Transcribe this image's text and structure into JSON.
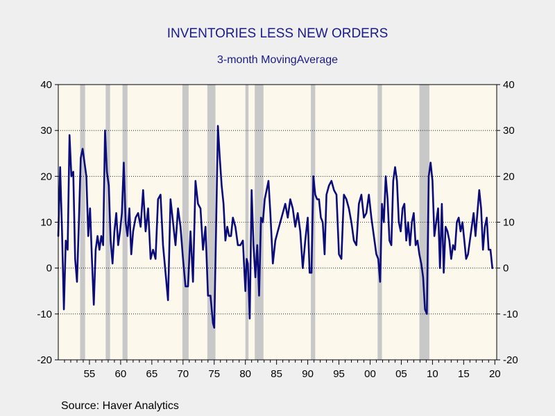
{
  "chart_data": {
    "type": "line",
    "title": "INVENTORIES LESS NEW ORDERS",
    "subtitle": "3-month MovingAverage",
    "source": "Source:  Haver Analytics",
    "ylim": [
      -20,
      40
    ],
    "y_ticks": [
      -20,
      -10,
      0,
      10,
      20,
      30,
      40
    ],
    "y_tick_labels": [
      "-20",
      "-10",
      "0",
      "10",
      "20",
      "30",
      "40"
    ],
    "xlim": [
      1950.0,
      2020.3
    ],
    "x_ticks": [
      1955,
      1960,
      1965,
      1970,
      1975,
      1980,
      1985,
      1990,
      1995,
      2000,
      2005,
      2010,
      2015,
      2020
    ],
    "x_tick_labels": [
      "55",
      "60",
      "65",
      "70",
      "75",
      "80",
      "85",
      "90",
      "95",
      "00",
      "05",
      "10",
      "15",
      "20"
    ],
    "grid": "horizontal dotted",
    "colors": {
      "line": "#0b0b7a",
      "plot_background": "#fcf8ec",
      "recession": "#c8c8c8",
      "text": "#1a1a8c"
    },
    "recessions": [
      [
        1953.5,
        1954.3
      ],
      [
        1957.6,
        1958.3
      ],
      [
        1960.3,
        1961.1
      ],
      [
        1969.9,
        1970.9
      ],
      [
        1973.9,
        1975.2
      ],
      [
        1980.0,
        1980.5
      ],
      [
        1981.5,
        1982.9
      ],
      [
        1990.5,
        1991.2
      ],
      [
        2001.2,
        2001.9
      ],
      [
        2007.9,
        2009.5
      ]
    ],
    "series": [
      {
        "x": [
          1950.0,
          1950.3,
          1950.6,
          1950.9,
          1951.2,
          1951.5,
          1951.8,
          1952.1,
          1952.4,
          1952.7,
          1953.0,
          1953.3,
          1953.6,
          1953.9,
          1954.2,
          1954.5,
          1954.8,
          1955.1,
          1955.4,
          1955.7,
          1956.0,
          1956.3,
          1956.6,
          1956.9,
          1957.2,
          1957.5,
          1957.8,
          1958.1,
          1958.4,
          1958.7,
          1959.0,
          1959.3,
          1959.6,
          1959.9,
          1960.2,
          1960.5,
          1960.8,
          1961.1,
          1961.4,
          1961.7,
          1962.0,
          1962.4,
          1962.8,
          1963.2,
          1963.6,
          1964.0,
          1964.4,
          1964.8,
          1965.2,
          1965.6,
          1966.0,
          1966.4,
          1966.8,
          1967.2,
          1967.6,
          1968.0,
          1968.4,
          1968.8,
          1969.2,
          1969.6,
          1970.0,
          1970.4,
          1970.8,
          1971.2,
          1971.6,
          1972.0,
          1972.4,
          1972.8,
          1973.2,
          1973.6,
          1974.0,
          1974.4,
          1974.8,
          1975.0,
          1975.3,
          1975.6,
          1975.9,
          1976.2,
          1976.5,
          1976.8,
          1977.1,
          1977.4,
          1977.7,
          1978.0,
          1978.4,
          1978.8,
          1979.2,
          1979.6,
          1980.0,
          1980.2,
          1980.4,
          1980.7,
          1981.0,
          1981.3,
          1981.6,
          1981.9,
          1982.2,
          1982.5,
          1982.8,
          1983.1,
          1983.4,
          1983.7,
          1984.0,
          1984.4,
          1984.8,
          1985.2,
          1985.6,
          1986.0,
          1986.4,
          1986.8,
          1987.2,
          1987.6,
          1988.0,
          1988.4,
          1988.8,
          1989.2,
          1989.6,
          1990.0,
          1990.3,
          1990.6,
          1990.9,
          1991.2,
          1991.5,
          1991.8,
          1992.1,
          1992.4,
          1992.7,
          1993.0,
          1993.4,
          1993.8,
          1994.2,
          1994.6,
          1995.0,
          1995.4,
          1995.8,
          1996.2,
          1996.6,
          1997.0,
          1997.4,
          1997.8,
          1998.2,
          1998.6,
          1999.0,
          1999.4,
          1999.8,
          2000.2,
          2000.6,
          2001.0,
          2001.3,
          2001.6,
          2001.9,
          2002.2,
          2002.5,
          2002.8,
          2003.1,
          2003.4,
          2003.7,
          2004.0,
          2004.3,
          2004.6,
          2004.9,
          2005.2,
          2005.5,
          2005.8,
          2006.1,
          2006.4,
          2006.7,
          2007.0,
          2007.3,
          2007.6,
          2007.9,
          2008.2,
          2008.5,
          2008.8,
          2009.1,
          2009.4,
          2009.7,
          2010.0,
          2010.3,
          2010.6,
          2010.9,
          2011.2,
          2011.5,
          2011.8,
          2012.1,
          2012.4,
          2012.7,
          2013.0,
          2013.3,
          2013.6,
          2013.9,
          2014.2,
          2014.5,
          2014.8,
          2015.1,
          2015.4,
          2015.7,
          2016.0,
          2016.3,
          2016.6,
          2016.9,
          2017.2,
          2017.5,
          2017.8,
          2018.1,
          2018.4,
          2018.7,
          2019.0,
          2019.3,
          2019.6
        ],
        "y": [
          7,
          22,
          8,
          -9,
          6,
          4,
          29,
          20,
          21,
          2,
          -3,
          10,
          24,
          26,
          23,
          20,
          7,
          13,
          2,
          -8,
          4,
          7,
          4,
          7,
          5,
          30,
          21,
          18,
          6,
          1,
          8,
          12,
          5,
          8,
          12,
          23,
          10,
          7,
          13,
          3,
          8,
          11,
          12,
          9,
          17,
          8,
          13,
          2,
          4,
          2,
          15,
          16,
          5,
          -1,
          -7,
          15,
          10,
          5,
          13,
          9,
          2,
          -4,
          -4,
          8,
          -3,
          19,
          14,
          13,
          4,
          9,
          -6,
          -6,
          -12,
          -13,
          8,
          31,
          24,
          18,
          14,
          6,
          9,
          7,
          7,
          11,
          9,
          5,
          5,
          6,
          -5,
          2,
          1,
          -11,
          17,
          5,
          -2,
          5,
          -6,
          11,
          10,
          15,
          17,
          19,
          12,
          1,
          6,
          8,
          10,
          12,
          14,
          11,
          15,
          13,
          9,
          12,
          8,
          0,
          6,
          11,
          -1,
          -1,
          20,
          16,
          15,
          15,
          11,
          10,
          3,
          16,
          18,
          19,
          17,
          16,
          3,
          2,
          16,
          15,
          13,
          10,
          6,
          5,
          14,
          16,
          11,
          12,
          16,
          11,
          7,
          3,
          2,
          -3,
          14,
          10,
          20,
          15,
          6,
          5,
          19,
          22,
          19,
          10,
          8,
          13,
          14,
          6,
          10,
          5,
          10,
          12,
          5,
          6,
          3,
          1,
          -2,
          -9,
          -10,
          20,
          23,
          19,
          7,
          10,
          13,
          0,
          14,
          -1,
          9,
          8,
          6,
          2,
          5,
          4,
          10,
          11,
          8,
          10,
          6,
          2,
          3,
          6,
          9,
          12,
          7,
          12,
          17,
          13,
          4,
          9,
          11,
          4,
          4,
          0
        ]
      }
    ]
  }
}
